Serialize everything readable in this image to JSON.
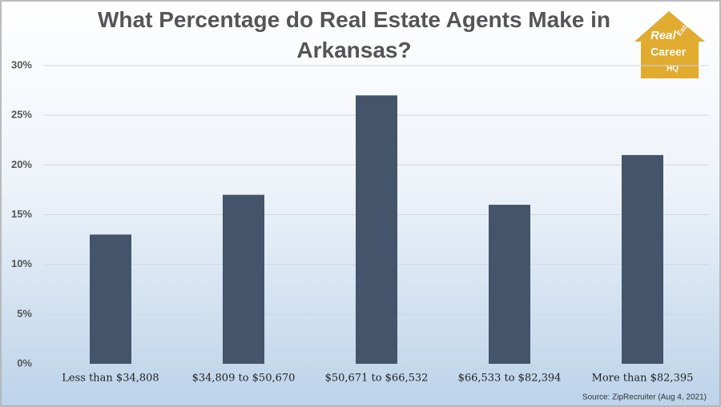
{
  "chart_data": {
    "type": "bar",
    "title": "What Percentage do Real Estate Agents Make in Arkansas?",
    "categories": [
      "Less than $34,808",
      "$34,809 to $50,670",
      "$50,671 to $66,532",
      "$66,533 to $82,394",
      "More than $82,395"
    ],
    "values": [
      13,
      17,
      27,
      16,
      21
    ],
    "color": "#44546a",
    "ylim": [
      0,
      30
    ],
    "yticks": [
      {
        "value": 0,
        "label": "0%"
      },
      {
        "value": 5,
        "label": "5%"
      },
      {
        "value": 10,
        "label": "10%"
      },
      {
        "value": 15,
        "label": "15%"
      },
      {
        "value": 20,
        "label": "20%"
      },
      {
        "value": 25,
        "label": "25%"
      },
      {
        "value": 30,
        "label": "30%"
      }
    ],
    "grid": true,
    "source": "Source: ZipRecruiter (Aug 4, 2021)"
  },
  "logo": {
    "lines": [
      "Real",
      "Estate",
      "Career",
      "HQ"
    ]
  }
}
